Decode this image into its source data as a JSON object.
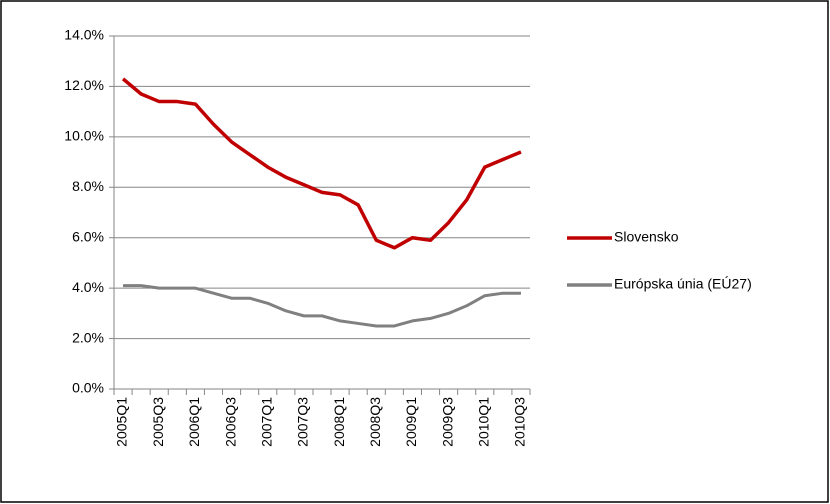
{
  "chart_data": {
    "type": "line",
    "categories": [
      "2005Q1",
      null,
      "2005Q3",
      null,
      "2006Q1",
      null,
      "2006Q3",
      null,
      "2007Q1",
      null,
      "2007Q3",
      null,
      "2008Q1",
      null,
      "2008Q3",
      null,
      "2009Q1",
      null,
      "2009Q3",
      null,
      "2010Q1",
      null,
      "2010Q3"
    ],
    "series": [
      {
        "name": "Slovensko",
        "color": "#c00000",
        "values": [
          12.3,
          11.7,
          11.4,
          11.4,
          11.3,
          10.5,
          9.8,
          9.3,
          8.8,
          8.4,
          8.1,
          7.8,
          7.7,
          7.3,
          5.9,
          5.6,
          6.0,
          5.9,
          6.6,
          7.5,
          8.8,
          9.1,
          9.4
        ]
      },
      {
        "name": "Európska únia (EÚ27)",
        "color": "#808080",
        "values": [
          4.1,
          4.1,
          4.0,
          4.0,
          4.0,
          3.8,
          3.6,
          3.6,
          3.4,
          3.1,
          2.9,
          2.9,
          2.7,
          2.6,
          2.5,
          2.5,
          2.7,
          2.8,
          3.0,
          3.3,
          3.7,
          3.8,
          3.8
        ]
      }
    ],
    "ylim": [
      0,
      14
    ],
    "yticks": [
      {
        "value": 0,
        "label": "0.0%"
      },
      {
        "value": 2,
        "label": "2.0%"
      },
      {
        "value": 4,
        "label": "4.0%"
      },
      {
        "value": 6,
        "label": "6.0%"
      },
      {
        "value": 8,
        "label": "8.0%"
      },
      {
        "value": 10,
        "label": "10.0%"
      },
      {
        "value": 12,
        "label": "12.0%"
      },
      {
        "value": 14,
        "label": "14.0%"
      }
    ],
    "grid": true,
    "legend": "right"
  }
}
